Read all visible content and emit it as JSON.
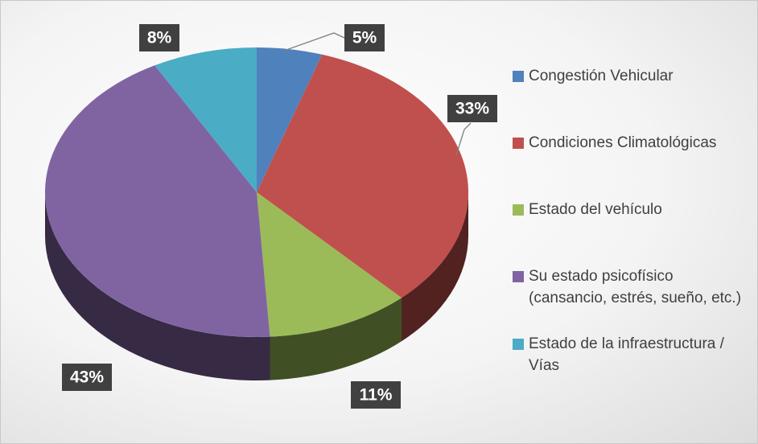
{
  "chart_data": {
    "type": "pie",
    "categories": [
      "Congestión Vehicular",
      "Condiciones Climatológicas",
      "Estado del vehículo",
      "Su estado psicofísico (cansancio, estrés, sueño, etc.)",
      "Estado de la infraestructura / Vías"
    ],
    "values": [
      5,
      33,
      11,
      43,
      8
    ],
    "value_labels": [
      "5%",
      "33%",
      "11%",
      "43%",
      "8%"
    ],
    "colors": [
      "#4f81bd",
      "#c0504d",
      "#9bbb59",
      "#8064a2",
      "#4bacc6"
    ],
    "legend": "right"
  }
}
